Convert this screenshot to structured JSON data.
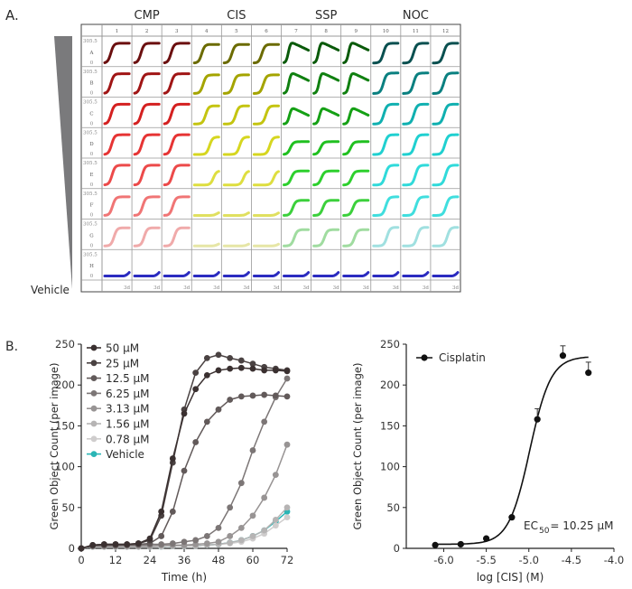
{
  "panel_a": {
    "label": "A.",
    "drug_headers": [
      "CMP",
      "CIS",
      "SSP",
      "NOC"
    ],
    "columns": [
      "1",
      "2",
      "3",
      "4",
      "5",
      "6",
      "7",
      "8",
      "9",
      "10",
      "11",
      "12"
    ],
    "rows": [
      "A",
      "B",
      "C",
      "D",
      "E",
      "F",
      "G",
      "H"
    ],
    "y_max_label": "305.5",
    "y_min_label": "0",
    "time_label": "3d",
    "vehicle_label": "Vehicle",
    "gradient_color": "#7a7a7c",
    "drugs": [
      {
        "name": "CMP",
        "shape": "rise",
        "colors": [
          "#6b0f0f",
          "#a01515",
          "#d42020",
          "#e63434",
          "#ec4a4a",
          "#f07575",
          "#f0aaaa"
        ],
        "onset": [
          0.25,
          0.25,
          0.26,
          0.28,
          0.3,
          0.32,
          0.38
        ],
        "level": [
          0.85,
          0.85,
          0.85,
          0.85,
          0.85,
          0.8,
          0.78
        ]
      },
      {
        "name": "CIS",
        "shape": "rise",
        "colors": [
          "#6b6b00",
          "#a4a400",
          "#c4c410",
          "#d6d620",
          "#dede40",
          "#e0e060",
          "#e6e6a6"
        ],
        "onset": [
          0.3,
          0.36,
          0.46,
          0.62,
          0.78,
          0.92,
          0.95
        ],
        "level": [
          0.8,
          0.8,
          0.78,
          0.75,
          0.6,
          0.15,
          0.12
        ]
      },
      {
        "name": "SSP",
        "shape": "peak",
        "colors": [
          "#0a5a0a",
          "#108010",
          "#15a015",
          "#20c020",
          "#2ed02e",
          "#3cd03c",
          "#a0dca0"
        ],
        "onset": [
          0.18,
          0.2,
          0.22,
          0.26,
          0.3,
          0.36,
          0.42
        ],
        "level": [
          0.75,
          0.75,
          0.55,
          0.55,
          0.6,
          0.65,
          0.7
        ]
      },
      {
        "name": "NOC",
        "shape": "rise",
        "colors": [
          "#0a5050",
          "#0a8080",
          "#10b0b0",
          "#20d0d0",
          "#30dada",
          "#40dede",
          "#a0e0e0"
        ],
        "onset": [
          0.4,
          0.4,
          0.42,
          0.45,
          0.48,
          0.5,
          0.55
        ],
        "level": [
          0.85,
          0.88,
          0.85,
          0.85,
          0.85,
          0.8,
          0.8
        ]
      }
    ],
    "vehicle_color": "#2b2bc0",
    "vehicle_level": 0.15
  },
  "panel_b": {
    "label": "B."
  },
  "chart_data": [
    {
      "type": "line",
      "xlabel": "Time (h)",
      "ylabel": "Green Object Count (per image)",
      "xlim": [
        0,
        72
      ],
      "ylim": [
        0,
        250
      ],
      "xticks": [
        0,
        12,
        24,
        36,
        48,
        60,
        72
      ],
      "yticks": [
        0,
        50,
        100,
        150,
        200,
        250
      ],
      "legend": "top-left",
      "x": [
        0,
        4,
        8,
        12,
        16,
        20,
        24,
        28,
        32,
        36,
        40,
        44,
        48,
        52,
        56,
        60,
        64,
        68,
        72
      ],
      "series": [
        {
          "name": "50 µM",
          "color": "#3a3030",
          "values": [
            0,
            4,
            5,
            5,
            5,
            6,
            12,
            45,
            110,
            165,
            195,
            212,
            218,
            220,
            221,
            220,
            218,
            218,
            217
          ]
        },
        {
          "name": "25 µM",
          "color": "#4a4242",
          "values": [
            0,
            4,
            5,
            5,
            5,
            6,
            10,
            40,
            105,
            170,
            215,
            233,
            237,
            233,
            230,
            226,
            222,
            220,
            218
          ]
        },
        {
          "name": "12.5 µM",
          "color": "#625a5a",
          "values": [
            0,
            3,
            4,
            4,
            4,
            5,
            6,
            15,
            45,
            95,
            130,
            155,
            170,
            182,
            186,
            187,
            188,
            187,
            186
          ]
        },
        {
          "name": "6.25 µM",
          "color": "#7c7676",
          "values": [
            0,
            3,
            3,
            3,
            4,
            4,
            5,
            5,
            6,
            8,
            10,
            15,
            25,
            50,
            80,
            120,
            155,
            185,
            208
          ]
        },
        {
          "name": "3.13 µM",
          "color": "#989494",
          "values": [
            0,
            3,
            3,
            3,
            3,
            3,
            3,
            4,
            4,
            4,
            5,
            6,
            8,
            15,
            25,
            40,
            62,
            90,
            127
          ]
        },
        {
          "name": "1.56 µM",
          "color": "#b6b4b4",
          "values": [
            0,
            2,
            2,
            2,
            2,
            2,
            2,
            3,
            3,
            3,
            3,
            4,
            5,
            7,
            10,
            15,
            22,
            35,
            50
          ]
        },
        {
          "name": "0.78 µM",
          "color": "#cfcdcd",
          "values": [
            0,
            2,
            2,
            2,
            2,
            2,
            2,
            2,
            3,
            3,
            3,
            4,
            5,
            6,
            8,
            12,
            18,
            28,
            38
          ]
        },
        {
          "name": "Vehicle",
          "color": "#2ab5b5",
          "values": [
            0,
            2,
            2,
            2,
            2,
            2,
            2,
            2,
            3,
            3,
            3,
            4,
            5,
            7,
            10,
            15,
            22,
            33,
            45
          ]
        }
      ]
    },
    {
      "type": "scatter",
      "xlabel": "log [CIS] (M)",
      "ylabel": "Green Object Count (per image)",
      "xlim": [
        -6.44,
        -4.0
      ],
      "ylim": [
        0,
        250
      ],
      "xticks": [
        "-6.0",
        "-5.5",
        "-5.0",
        "-4.5",
        "-4.0"
      ],
      "yticks": [
        0,
        50,
        100,
        150,
        200,
        250
      ],
      "legend": "top-left",
      "series": [
        {
          "name": "Cisplatin",
          "color": "#111111",
          "x": [
            -6.1,
            -5.8,
            -5.5,
            -5.2,
            -4.9,
            -4.6,
            -4.3
          ],
          "values": [
            4,
            5,
            12,
            38,
            158,
            236,
            215
          ],
          "error": [
            0,
            0,
            0,
            0,
            13,
            12,
            13
          ]
        }
      ],
      "fit": {
        "bottom": 5,
        "top": 235,
        "log_ec50": -4.989,
        "hill": 3.5,
        "x_range": [
          -6.1,
          -4.3
        ]
      },
      "annotation": {
        "prefix": "EC",
        "subscript": "50",
        "value": " = 10.25 µM"
      }
    }
  ]
}
